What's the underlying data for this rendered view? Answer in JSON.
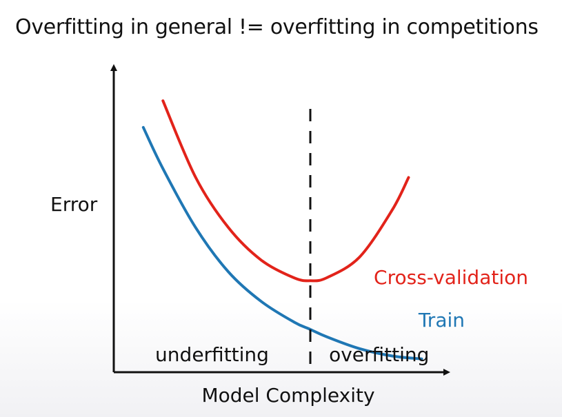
{
  "slide": {
    "title": "Overfitting in general != overfitting in competitions"
  },
  "chart_data": {
    "type": "line",
    "title": "",
    "xlabel": "Model Complexity",
    "ylabel": "Error",
    "xlim": [
      0,
      10
    ],
    "ylim": [
      0,
      10
    ],
    "grid": false,
    "x_ticks": [],
    "y_ticks": [],
    "series": [
      {
        "name": "Cross-validation",
        "color": "#e2231a",
        "x": [
          1.5,
          2.5,
          3.5,
          4.5,
          5.5,
          6.0,
          6.5,
          7.5,
          8.5,
          9.0
        ],
        "y": [
          9.2,
          6.6,
          4.9,
          3.8,
          3.2,
          3.1,
          3.2,
          3.9,
          5.5,
          6.6
        ]
      },
      {
        "name": "Train",
        "color": "#1f77b4",
        "x": [
          0.9,
          1.5,
          2.5,
          3.5,
          4.5,
          5.5,
          6.0,
          6.5,
          7.5,
          8.5,
          9.4
        ],
        "y": [
          8.3,
          6.9,
          4.9,
          3.4,
          2.4,
          1.7,
          1.45,
          1.2,
          0.8,
          0.55,
          0.45
        ]
      }
    ],
    "vertical_line": {
      "x": 6.0,
      "style": "dashed"
    },
    "region_labels": [
      {
        "text": "underfitting",
        "x_center": 3.0
      },
      {
        "text": "overfitting",
        "x_center": 8.1
      }
    ]
  }
}
